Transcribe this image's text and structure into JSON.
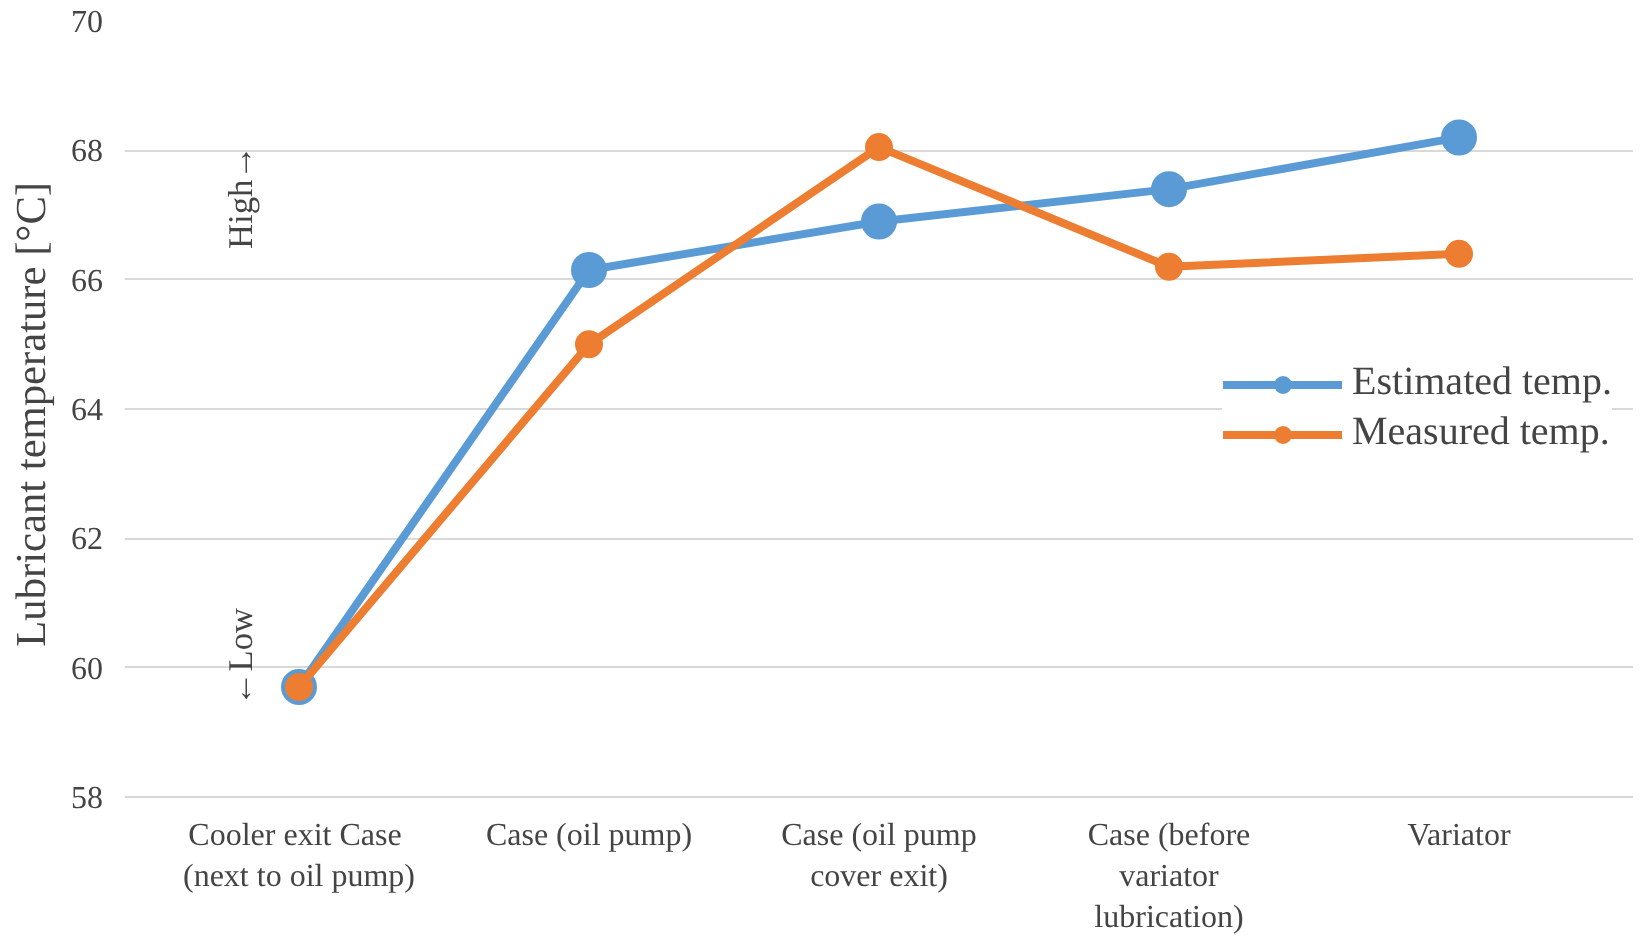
{
  "chart_data": {
    "type": "line",
    "ylabel": "Lubricant temperature  [°C]",
    "categories": [
      "Cooler exit  Case\n(next to oil pump)",
      "Case (oil pump)",
      "Case (oil pump\ncover exit)",
      "Case (before\nvariator\nlubrication)",
      "Variator"
    ],
    "series": [
      {
        "name": "Estimated temp.",
        "color": "#5b9bd5",
        "values": [
          59.7,
          66.15,
          66.9,
          67.4,
          68.2
        ]
      },
      {
        "name": "Measured temp.",
        "color": "#ed7d31",
        "values": [
          59.7,
          65.0,
          68.05,
          66.2,
          66.4
        ]
      }
    ],
    "ylim": [
      58,
      70
    ],
    "yticks": [
      58,
      60,
      62,
      64,
      66,
      68,
      70
    ],
    "grid": "y",
    "legend": "right",
    "marker": "circle",
    "line_style": "solid",
    "annotations": [
      "High→",
      "←Low"
    ]
  }
}
